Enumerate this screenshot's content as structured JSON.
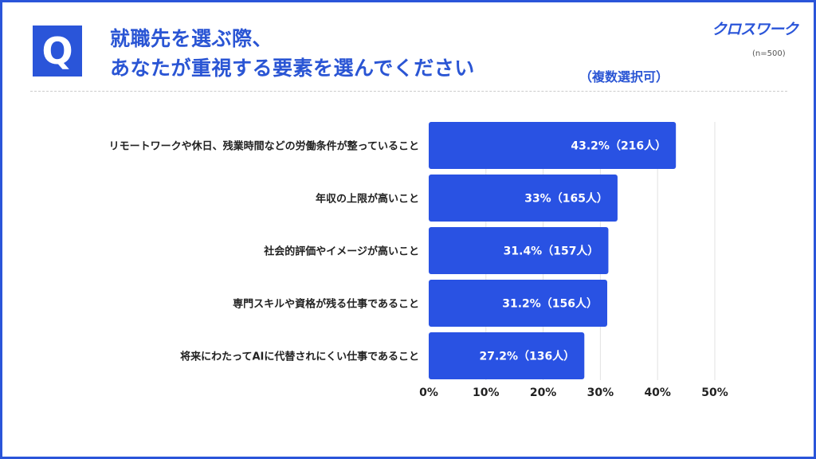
{
  "header": {
    "q_label": "Q",
    "title_line1": "就職先を選ぶ際、",
    "title_line2": "あなたが重視する要素を選んでください",
    "multiple_choice": "（複数選択可）",
    "logo": "クロスワーク",
    "sample_size": "(n=500)"
  },
  "colors": {
    "accent": "#2a55d9",
    "bar": "#2952e3"
  },
  "chart_data": {
    "type": "bar",
    "orientation": "horizontal",
    "categories": [
      "リモートワークや休日、残業時間などの労働条件が整っていること",
      "年収の上限が高いこと",
      "社会的評価やイメージが高いこと",
      "専門スキルや資格が残る仕事であること",
      "将来にわたってAIに代替されにくい仕事であること"
    ],
    "values": [
      43.2,
      33,
      31.4,
      31.2,
      27.2
    ],
    "counts": [
      216,
      165,
      157,
      156,
      136
    ],
    "data_labels": [
      "43.2%（216人）",
      "33%（165人）",
      "31.4%（157人）",
      "31.2%（156人）",
      "27.2%（136人）"
    ],
    "xlim": [
      0,
      50
    ],
    "ticks": [
      "0%",
      "10%",
      "20%",
      "30%",
      "40%",
      "50%"
    ],
    "tick_values": [
      0,
      10,
      20,
      30,
      40,
      50
    ],
    "grid": true,
    "xlabel": "",
    "ylabel": ""
  }
}
